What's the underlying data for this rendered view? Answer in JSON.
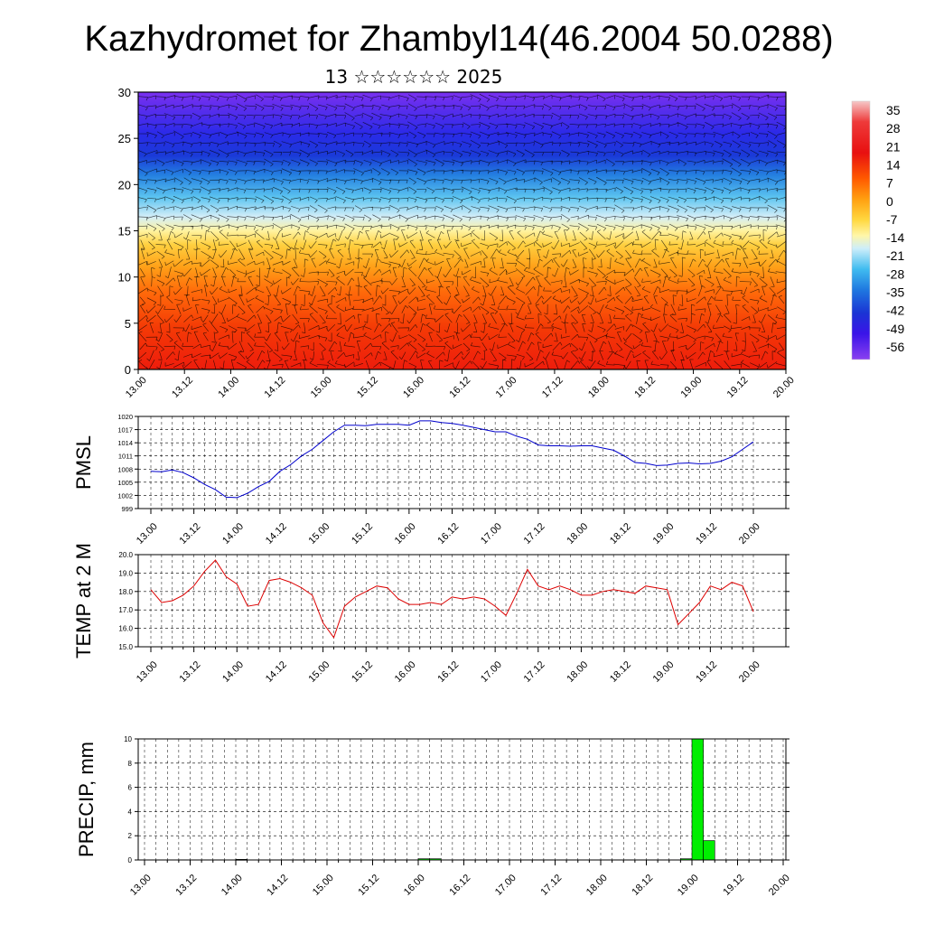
{
  "title": "Kazhydromet for Zhambyl14(46.2004 50.0288)",
  "subtitle": "13 ☆☆☆☆☆☆ 2025",
  "time_labels": [
    "13.00",
    "13.12",
    "14.00",
    "14.12",
    "15.00",
    "15.12",
    "16.00",
    "16.12",
    "17.00",
    "17.12",
    "18.00",
    "18.12",
    "19.00",
    "19.12",
    "20.00"
  ],
  "colorbar": {
    "labels": [
      "35",
      "28",
      "21",
      "14",
      "7",
      "0",
      "-7",
      "-14",
      "-21",
      "-28",
      "-35",
      "-42",
      "-49",
      "-56"
    ],
    "colors": [
      "#f4b8b8",
      "#ee3030",
      "#e81010",
      "#ff5000",
      "#ff9a10",
      "#ffc830",
      "#fff080",
      "#bfe8f8",
      "#3ab8f0",
      "#2070e0",
      "#1830d0",
      "#3a10e8",
      "#6a20f0",
      "#8a3cf0"
    ]
  },
  "chart_data": [
    {
      "type": "heatmap",
      "title": "",
      "ylim": [
        0,
        30
      ],
      "yticks": [
        "0",
        "5",
        "10",
        "15",
        "20",
        "25",
        "30"
      ],
      "value_range": [
        -56,
        35
      ],
      "series": "temperature cross-section with wind barbs"
    },
    {
      "type": "line",
      "ylabel": "PMSL",
      "ylim": [
        999,
        1020
      ],
      "yticks": [
        "1020",
        "1017",
        "1014",
        "1011",
        "1008",
        "1005",
        "1002",
        "999"
      ],
      "line_color": "#0000cc",
      "x_hours": [
        0,
        3,
        6,
        9,
        12,
        15,
        18,
        21,
        24,
        27,
        30,
        33,
        36,
        39,
        42,
        45,
        48,
        51,
        54,
        57,
        60,
        63,
        66,
        69,
        72,
        75,
        78,
        81,
        84,
        87,
        90,
        93,
        96,
        99,
        102,
        105,
        108,
        111,
        114,
        117,
        120,
        123,
        126,
        129,
        132,
        135,
        138,
        141,
        144,
        147,
        150,
        153,
        156,
        159,
        162,
        165,
        168
      ],
      "values": [
        1007.5,
        1007.4,
        1007.8,
        1007.2,
        1006,
        1004.5,
        1003.3,
        1001.6,
        1001.5,
        1002.5,
        1004,
        1005.2,
        1007.5,
        1009,
        1011,
        1012.5,
        1014.5,
        1016.5,
        1018,
        1018,
        1017.9,
        1018.2,
        1018.2,
        1018.2,
        1018,
        1019,
        1019,
        1018.6,
        1018.4,
        1018,
        1017.5,
        1017,
        1016.5,
        1016.5,
        1015.5,
        1014.8,
        1013.5,
        1013.3,
        1013.3,
        1013.2,
        1013.3,
        1013.3,
        1012.8,
        1012.3,
        1011,
        1009.5,
        1009.3,
        1008.8,
        1008.9,
        1009.3,
        1009.4,
        1009.2,
        1009.3,
        1009.8,
        1010.8,
        1012.5,
        1014.2
      ]
    },
    {
      "type": "line",
      "ylabel": "TEMP at 2 M",
      "ylim": [
        15,
        20
      ],
      "yticks": [
        "20.0",
        "19.0",
        "18.0",
        "17.0",
        "16.0",
        "15.0"
      ],
      "line_color": "#dd0000",
      "x_hours": [
        0,
        3,
        6,
        9,
        12,
        15,
        18,
        21,
        24,
        27,
        30,
        33,
        36,
        39,
        42,
        45,
        48,
        51,
        54,
        57,
        60,
        63,
        66,
        69,
        72,
        75,
        78,
        81,
        84,
        87,
        90,
        93,
        96,
        99,
        102,
        105,
        108,
        111,
        114,
        117,
        120,
        123,
        126,
        129,
        132,
        135,
        138,
        141,
        144,
        147,
        150,
        153,
        156,
        159,
        162,
        165,
        168
      ],
      "values": [
        18.1,
        17.4,
        17.5,
        17.8,
        18.3,
        19.1,
        19.7,
        18.8,
        18.4,
        17.2,
        17.3,
        18.6,
        18.7,
        18.5,
        18.2,
        17.8,
        16.3,
        15.5,
        17.2,
        17.7,
        18.0,
        18.3,
        18.2,
        17.6,
        17.3,
        17.3,
        17.4,
        17.3,
        17.7,
        17.6,
        17.7,
        17.6,
        17.2,
        16.7,
        17.9,
        19.2,
        18.3,
        18.1,
        18.3,
        18.1,
        17.8,
        17.8,
        18.0,
        18.1,
        18.0,
        17.9,
        18.3,
        18.2,
        18.1,
        16.2,
        16.8,
        17.4,
        18.3,
        18.1,
        18.5,
        18.3,
        16.9
      ]
    },
    {
      "type": "bar",
      "ylabel": "PRECIP, mm",
      "ylim": [
        0,
        10
      ],
      "yticks": [
        "10",
        "8",
        "6",
        "4",
        "2",
        "0"
      ],
      "bar_color": "#00ee00",
      "bars": [
        {
          "start_hour": 24,
          "end_hour": 27,
          "value": 0.05
        },
        {
          "start_hour": 72,
          "end_hour": 75,
          "value": 0.1
        },
        {
          "start_hour": 75,
          "end_hour": 78,
          "value": 0.1
        },
        {
          "start_hour": 141,
          "end_hour": 144,
          "value": 0.1
        },
        {
          "start_hour": 144,
          "end_hour": 147,
          "value": 10
        },
        {
          "start_hour": 147,
          "end_hour": 150,
          "value": 1.6
        }
      ]
    }
  ]
}
